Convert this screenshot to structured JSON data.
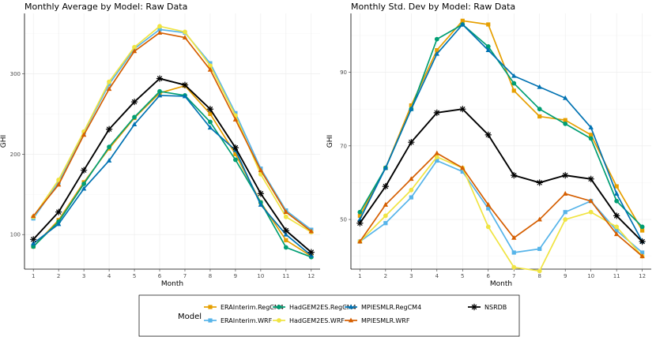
{
  "chart_data": [
    {
      "type": "line",
      "title": "Monthly Average by Model: Raw Data",
      "xlabel": "Month",
      "ylabel": "GHI",
      "categories": [
        "1",
        "2",
        "3",
        "4",
        "5",
        "6",
        "7",
        "8",
        "9",
        "10",
        "11",
        "12"
      ],
      "x": [
        1,
        2,
        3,
        4,
        5,
        6,
        7,
        8,
        9,
        10,
        11,
        12
      ],
      "xlim": [
        0.65,
        12.35
      ],
      "ylim": [
        57,
        375
      ],
      "yticks": [
        100,
        200,
        300
      ],
      "series": [
        {
          "name": "ERAInterim.RegCM4",
          "values": [
            85,
            118,
            165,
            207,
            245,
            276,
            285,
            250,
            200,
            140,
            93,
            73
          ]
        },
        {
          "name": "ERAInterim.WRF",
          "values": [
            120,
            165,
            227,
            287,
            331,
            355,
            351,
            313,
            251,
            182,
            130,
            106
          ]
        },
        {
          "name": "HadGEM2ES.RegCM4",
          "values": [
            85,
            116,
            163,
            209,
            246,
            278,
            273,
            240,
            193,
            140,
            84,
            72
          ]
        },
        {
          "name": "HadGEM2ES.WRF",
          "values": [
            122,
            168,
            228,
            290,
            333,
            359,
            352,
            310,
            248,
            175,
            122,
            103
          ]
        },
        {
          "name": "MPIESMLR.RegCM4",
          "values": [
            89,
            113,
            157,
            192,
            237,
            273,
            272,
            233,
            205,
            137,
            100,
            74
          ]
        },
        {
          "name": "MPIESMLR.WRF",
          "values": [
            123,
            162,
            224,
            281,
            328,
            351,
            345,
            305,
            243,
            180,
            128,
            104
          ]
        },
        {
          "name": "NSRDB",
          "values": [
            94,
            128,
            180,
            231,
            265,
            294,
            286,
            256,
            208,
            151,
            105,
            78
          ]
        }
      ]
    },
    {
      "type": "line",
      "title": "Monthly Std. Dev by Model: Raw Data",
      "xlabel": "Month",
      "ylabel": "GHI",
      "categories": [
        "1",
        "2",
        "3",
        "4",
        "5",
        "6",
        "7",
        "8",
        "9",
        "10",
        "11",
        "12"
      ],
      "x": [
        1,
        2,
        3,
        4,
        5,
        6,
        7,
        8,
        9,
        10,
        11,
        12
      ],
      "xlim": [
        0.65,
        12.35
      ],
      "ylim": [
        36.5,
        106
      ],
      "yticks": [
        50,
        70,
        90
      ],
      "series": [
        {
          "name": "ERAInterim.RegCM4",
          "values": [
            51,
            64,
            81,
            96,
            104,
            103,
            85,
            78,
            77,
            73,
            59,
            47
          ]
        },
        {
          "name": "ERAInterim.WRF",
          "values": [
            44,
            49,
            56,
            66,
            63,
            53,
            41,
            42,
            52,
            55,
            47,
            41
          ]
        },
        {
          "name": "HadGEM2ES.RegCM4",
          "values": [
            52,
            64,
            80,
            99,
            103,
            97,
            87,
            80,
            76,
            72,
            55,
            48
          ]
        },
        {
          "name": "HadGEM2ES.WRF",
          "values": [
            44,
            51,
            58,
            67,
            64,
            48,
            37,
            36,
            50,
            52,
            48,
            40
          ]
        },
        {
          "name": "MPIESMLR.RegCM4",
          "values": [
            50,
            64,
            80,
            95,
            103,
            96,
            89,
            86,
            83,
            75,
            57,
            44
          ]
        },
        {
          "name": "MPIESMLR.WRF",
          "values": [
            44,
            54,
            61,
            68,
            64,
            54,
            45,
            50,
            57,
            55,
            46,
            40
          ]
        },
        {
          "name": "NSRDB",
          "values": [
            49,
            59,
            71,
            79,
            80,
            73,
            62,
            60,
            62,
            61,
            51,
            44
          ]
        }
      ]
    }
  ],
  "legend": {
    "title": "Model",
    "placement": "bottom",
    "entries": [
      {
        "name": "ERAInterim.RegCM4",
        "color": "#E69F00",
        "shape": "square"
      },
      {
        "name": "ERAInterim.WRF",
        "color": "#56B4E9",
        "shape": "square"
      },
      {
        "name": "HadGEM2ES.RegCM4",
        "color": "#009E73",
        "shape": "circle"
      },
      {
        "name": "HadGEM2ES.WRF",
        "color": "#F0E442",
        "shape": "circle"
      },
      {
        "name": "MPIESMLR.RegCM4",
        "color": "#0072B2",
        "shape": "triangle"
      },
      {
        "name": "MPIESMLR.WRF",
        "color": "#D55E00",
        "shape": "triangle"
      },
      {
        "name": "NSRDB",
        "color": "#000000",
        "shape": "asterisk"
      }
    ]
  }
}
